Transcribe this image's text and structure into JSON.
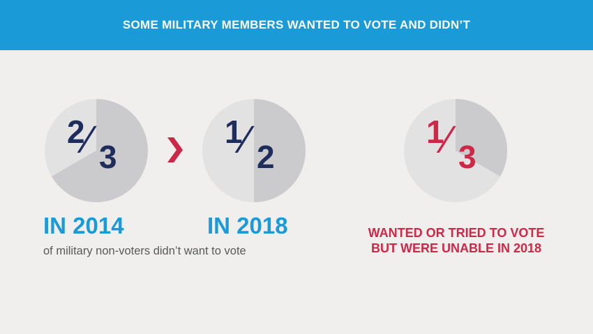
{
  "banner": {
    "title": "SOME MILITARY MEMBERS WANTED TO VOTE AND DIDN’T"
  },
  "colors": {
    "banner": "#1a9ad7",
    "background": "#f0efed",
    "pie_light": "#e2e2e3",
    "pie_dark": "#cbcbcd",
    "navy": "#1e2d5c",
    "red": "#cc2848",
    "blue_text": "#1a9ad7"
  },
  "chart_data": [
    {
      "type": "pie",
      "fraction_label": {
        "numerator": "2",
        "denominator": "3"
      },
      "highlighted_fraction": 0.6667,
      "label": "IN 2014"
    },
    {
      "type": "pie",
      "fraction_label": {
        "numerator": "1",
        "denominator": "2"
      },
      "highlighted_fraction": 0.5,
      "label": "IN 2018"
    },
    {
      "type": "pie",
      "fraction_label": {
        "numerator": "1",
        "denominator": "3"
      },
      "highlighted_fraction": 0.3333,
      "label": "WANTED OR TRIED TO VOTE BUT WERE UNABLE IN 2018"
    }
  ],
  "subtext": "of military non-voters didn’t want to vote",
  "caption": {
    "line1": "WANTED OR TRIED TO VOTE",
    "line2": "BUT WERE UNABLE IN 2018"
  },
  "icons": {
    "comparison_arrow": "chevron-right-icon"
  }
}
